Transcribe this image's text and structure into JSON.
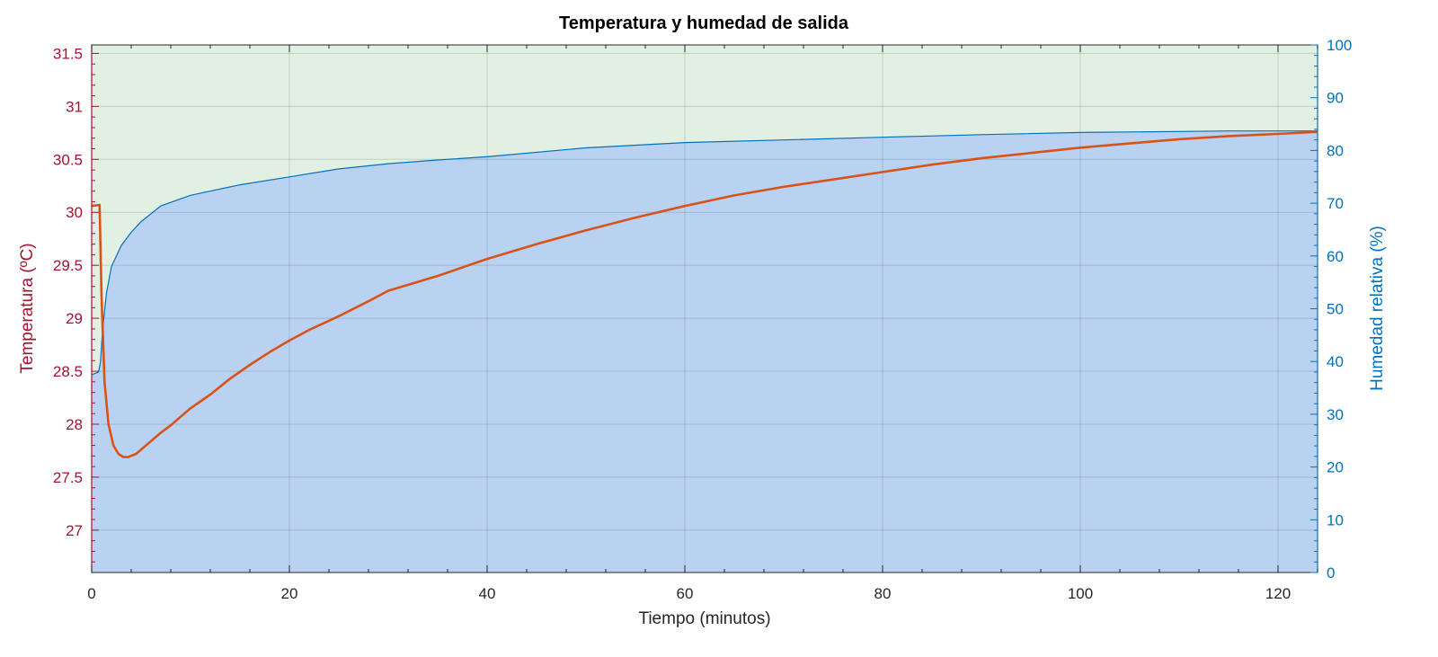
{
  "chart_data": {
    "type": "line",
    "title": "Temperatura y humedad de salida",
    "xlabel": "Tiempo (minutos)",
    "ylabel_left": "Temperatura (ºC)",
    "ylabel_right": "Humedad relativa (%)",
    "xlim": [
      0,
      124
    ],
    "ylim_left": [
      26.6,
      31.58
    ],
    "ylim_right": [
      0,
      100
    ],
    "x_ticks": [
      "0",
      "20",
      "40",
      "60",
      "80",
      "100",
      "120"
    ],
    "y_left_ticks": [
      "27",
      "27.5",
      "28",
      "28.5",
      "29",
      "29.5",
      "30",
      "30.5",
      "31",
      "31.5"
    ],
    "y_right_ticks": [
      "0",
      "10",
      "20",
      "30",
      "40",
      "50",
      "60",
      "70",
      "80",
      "90",
      "100"
    ],
    "grid": true,
    "colors": {
      "temperature_line": "#d95319",
      "humidity_line": "#0072bd",
      "humidity_fill": "#b9d2f2",
      "background_fill": "#e2efe3",
      "left_axis": "#a2142f",
      "right_axis": "#0072bd"
    },
    "series": [
      {
        "axis": "left",
        "x": [
          0,
          0.8,
          1.0,
          1.3,
          1.7,
          2.2,
          2.7,
          3.2,
          3.7,
          4.5,
          5,
          6,
          7,
          8,
          9,
          10,
          12,
          14,
          16,
          18,
          20,
          22,
          25,
          28,
          30,
          35,
          40,
          45,
          50,
          55,
          60,
          65,
          70,
          75,
          80,
          85,
          90,
          95,
          100,
          105,
          110,
          115,
          120,
          124
        ],
        "values": [
          30.06,
          30.07,
          29.2,
          28.4,
          28.0,
          27.8,
          27.72,
          27.69,
          27.69,
          27.72,
          27.76,
          27.84,
          27.92,
          27.99,
          28.07,
          28.15,
          28.28,
          28.43,
          28.56,
          28.68,
          28.79,
          28.89,
          29.02,
          29.16,
          29.26,
          29.4,
          29.56,
          29.7,
          29.83,
          29.95,
          30.06,
          30.16,
          30.24,
          30.31,
          30.38,
          30.45,
          30.51,
          30.56,
          30.61,
          30.65,
          30.69,
          30.72,
          30.74,
          30.76
        ]
      },
      {
        "axis": "right",
        "x": [
          0,
          0.7,
          0.9,
          1.1,
          1.5,
          2,
          3,
          4,
          5,
          7,
          10,
          15,
          20,
          25,
          30,
          35,
          40,
          50,
          60,
          70,
          80,
          90,
          100,
          110,
          115,
          120,
          124
        ],
        "values": [
          37.5,
          38,
          40,
          46,
          53,
          58,
          62,
          64.5,
          66.5,
          69.5,
          71.5,
          73.5,
          75,
          76.5,
          77.5,
          78.2,
          78.8,
          80.5,
          81.5,
          82,
          82.5,
          83,
          83.4,
          83.6,
          83.7,
          83.7,
          83.7
        ]
      }
    ]
  }
}
